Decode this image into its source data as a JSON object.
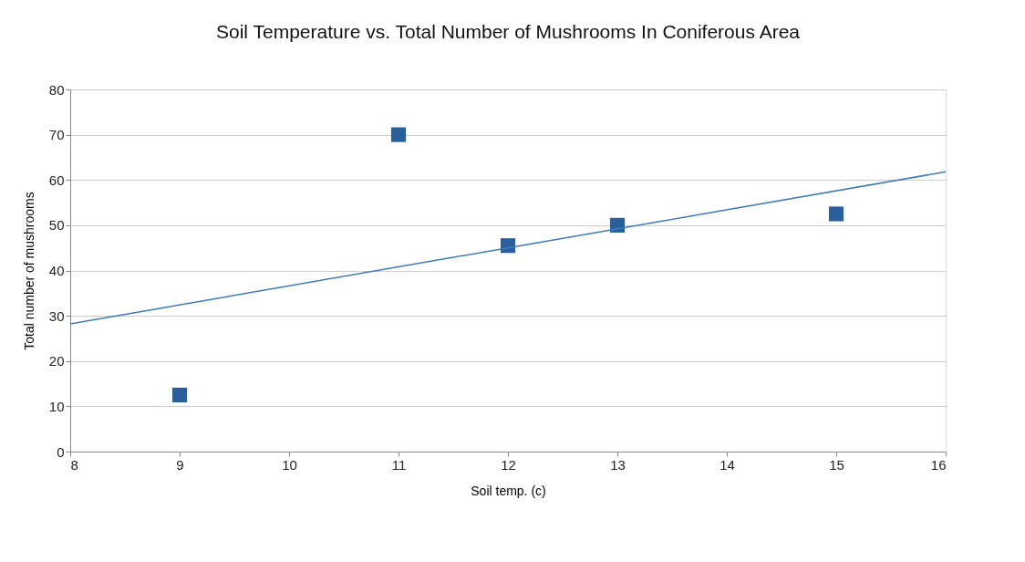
{
  "chart_data": {
    "type": "scatter",
    "title": "Soil Temperature vs. Total Number of Mushrooms In Coniferous Area",
    "xlabel": "Soil temp. (c)",
    "ylabel": "Total number of mushrooms",
    "series": [
      {
        "color": "#2a5f9e",
        "marker": "square",
        "x": [
          9,
          11,
          12,
          13,
          15
        ],
        "values": [
          12.5,
          70,
          45.5,
          50,
          52.5
        ]
      },
      {
        "type": "line",
        "color": "#3d7ab8",
        "marker": "none",
        "x": [
          8,
          16
        ],
        "values": [
          28.2,
          61.8
        ]
      }
    ],
    "xlim": [
      8,
      16
    ],
    "xticks": [
      8,
      9,
      10,
      11,
      12,
      13,
      14,
      15,
      16
    ],
    "ylim": [
      0,
      80
    ],
    "yticks": [
      0,
      10,
      20,
      30,
      40,
      50,
      60,
      70,
      80
    ],
    "grid": "y"
  }
}
